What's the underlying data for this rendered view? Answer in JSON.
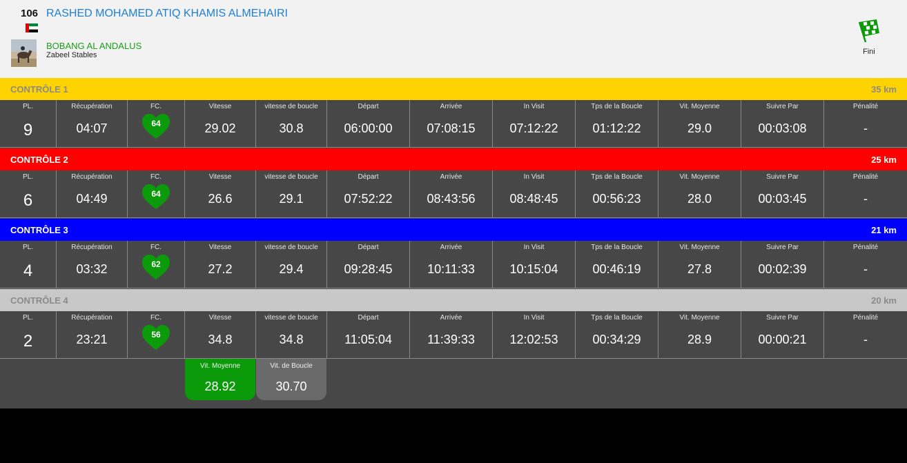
{
  "rider": {
    "bib": "106",
    "name": "RASHED MOHAMED ATIQ KHAMIS ALMEHAIRI"
  },
  "horse": {
    "name": "BOBANG AL ANDALUS",
    "stable": "Zabeel Stables"
  },
  "status": {
    "label": "Fini"
  },
  "columns": [
    "PL.",
    "Récupération",
    "FC.",
    "Vitesse",
    "vitesse de boucle",
    "Départ",
    "Arrivée",
    "In Visit",
    "Tps de la Boucle",
    "Vit. Moyenne",
    "Suivre Par",
    "Pénalité"
  ],
  "controls": [
    {
      "title": "CONTRÔLE 1",
      "distance": "35 km",
      "bg": "#ffd300",
      "fg": "#8a8a8a",
      "values": [
        "9",
        "04:07",
        "64",
        "29.02",
        "30.8",
        "06:00:00",
        "07:08:15",
        "07:12:22",
        "01:12:22",
        "29.0",
        "00:03:08",
        "-"
      ]
    },
    {
      "title": "CONTRÔLE 2",
      "distance": "25 km",
      "bg": "#ff0000",
      "fg": "#ffffff",
      "values": [
        "6",
        "04:49",
        "64",
        "26.6",
        "29.1",
        "07:52:22",
        "08:43:56",
        "08:48:45",
        "00:56:23",
        "28.0",
        "00:03:45",
        "-"
      ]
    },
    {
      "title": "CONTRÔLE 3",
      "distance": "21 km",
      "bg": "#0000ff",
      "fg": "#ffffff",
      "values": [
        "4",
        "03:32",
        "62",
        "27.2",
        "29.4",
        "09:28:45",
        "10:11:33",
        "10:15:04",
        "00:46:19",
        "27.8",
        "00:02:39",
        "-"
      ]
    },
    {
      "title": "CONTRÔLE 4",
      "distance": "20 km",
      "bg": "#c8c8c8",
      "fg": "#8a8a8a",
      "values": [
        "2",
        "23:21",
        "56",
        "34.8",
        "34.8",
        "11:05:04",
        "11:39:33",
        "12:02:53",
        "00:34:29",
        "28.9",
        "00:00:21",
        "-"
      ]
    }
  ],
  "summary": {
    "avg_label": "Vit. Moyenne",
    "avg_value": "28.92",
    "avg_color": "#0a9a0a",
    "loop_label": "Vit. de Boucle",
    "loop_value": "30.70",
    "loop_color": "#6a6a6a"
  },
  "colors": {
    "heart": "#0a9a0a",
    "rider_name": "#1e7fd2",
    "horse_name": "#18a018"
  },
  "icons": {
    "flag": "uae-flag-icon",
    "horse": "horse-photo",
    "status": "checkered-flag-icon",
    "heart": "heart-icon"
  }
}
